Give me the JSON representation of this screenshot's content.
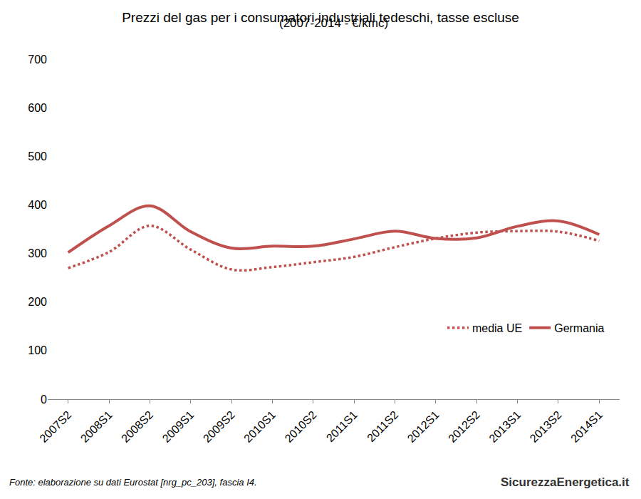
{
  "chart_data": {
    "type": "line",
    "title": "Prezzi del gas per i consumatori industriali tedeschi, tasse escluse",
    "subtitle": "(2007-2014 - €/kmc)",
    "source": "Fonte: elaborazione su dati Eurostat [nrg_pc_203], fascia I4.",
    "logo": "SicurezzaEnergetica.it",
    "categories": [
      "2007S2",
      "2008S1",
      "2008S2",
      "2009S1",
      "2009S2",
      "2010S1",
      "2010S2",
      "2011S1",
      "2011S2",
      "2012S1",
      "2012S2",
      "2013S1",
      "2013S2",
      "2014S1"
    ],
    "series": [
      {
        "name": "media UE",
        "color": "#c0504d",
        "line_style": "dotted",
        "values": [
          270,
          303,
          357,
          308,
          267,
          272,
          282,
          293,
          313,
          331,
          343,
          346,
          345,
          326
        ]
      },
      {
        "name": "Germania",
        "color": "#c0504d",
        "line_style": "solid",
        "values": [
          302,
          357,
          398,
          345,
          311,
          315,
          315,
          330,
          346,
          331,
          332,
          356,
          367,
          339
        ]
      }
    ],
    "ylim": [
      0,
      700
    ],
    "yticks": [
      0,
      100,
      200,
      300,
      400,
      500,
      600,
      700
    ],
    "grid": false,
    "legend": "lower right"
  }
}
